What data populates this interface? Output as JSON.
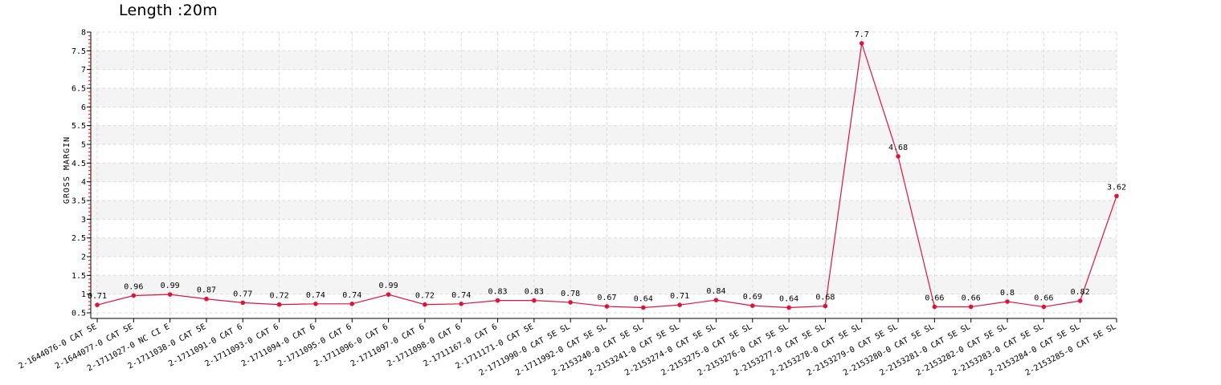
{
  "chart_data": {
    "type": "line",
    "title": "Length :20m",
    "xlabel": "",
    "ylabel": "GROSS MARGIN",
    "ylim": [
      0.5,
      8
    ],
    "yticks": [
      "0.5",
      "1",
      "1.5",
      "2",
      "2.5",
      "3",
      "3.5",
      "4",
      "4.5",
      "5",
      "5.5",
      "6",
      "6.5",
      "7",
      "7.5",
      "8"
    ],
    "grid": true,
    "categories": [
      "2-1644076-0 CAT 5E",
      "2-1644077-0 CAT 5E",
      "2-1711027-0 NC CI E",
      "2-1711038-0 CAT 5E",
      "2-1711091-0 CAT 6",
      "2-1711093-0 CAT 6",
      "2-1711094-0 CAT 6",
      "2-1711095-0 CAT 6",
      "2-1711096-0 CAT 6",
      "2-1711097-0 CAT 6",
      "2-1711098-0 CAT 6",
      "2-1711167-0 CAT 6",
      "2-1711171-0 CAT 5E",
      "2-1711990-0 CAT 5E SL",
      "2-1711992-0 CAT 5E SL",
      "2-2153240-0 CAT 5E SL",
      "2-2153241-0 CAT 5E SL",
      "2-2153274-0 CAT 5E SL",
      "2-2153275-0 CAT 5E SL",
      "2-2153276-0 CAT 5E SL",
      "2-2153277-0 CAT 5E SL",
      "2-2153278-0 CAT 5E SL",
      "2-2153279-0 CAT 5E SL",
      "2-2153280-0 CAT 5E SL",
      "2-2153281-0 CAT 5E SL",
      "2-2153282-0 CAT 5E SL",
      "2-2153283-0 CAT 5E SL",
      "2-2153284-0 CAT 5E SL",
      "2-2153285-0 CAT 5E SL"
    ],
    "values": [
      0.71,
      0.96,
      0.99,
      0.87,
      0.77,
      0.72,
      0.74,
      0.74,
      0.99,
      0.72,
      0.74,
      0.83,
      0.83,
      0.78,
      0.67,
      0.64,
      0.71,
      0.84,
      0.69,
      0.64,
      0.68,
      7.7,
      4.68,
      0.66,
      0.66,
      0.8,
      0.66,
      0.82,
      3.62
    ],
    "value_labels": [
      "0.71",
      "0.96",
      "0.99",
      "0.87",
      "0.77",
      "0.72",
      "0.74",
      "0.74",
      "0.99",
      "0.72",
      "0.74",
      "0.83",
      "0.83",
      "0.78",
      "0.67",
      "0.64",
      "0.71",
      "0.84",
      "0.69",
      "0.64",
      "0.68",
      "7.7",
      "4.68",
      "0.66",
      "0.66",
      "0.8",
      "0.66",
      "0.82",
      "3.62"
    ],
    "colors": {
      "line": "#dc143c",
      "band": "#f4f4f4",
      "grid": "#dddddd",
      "axis": "#000000",
      "minor_tick": "#ff0000"
    }
  }
}
